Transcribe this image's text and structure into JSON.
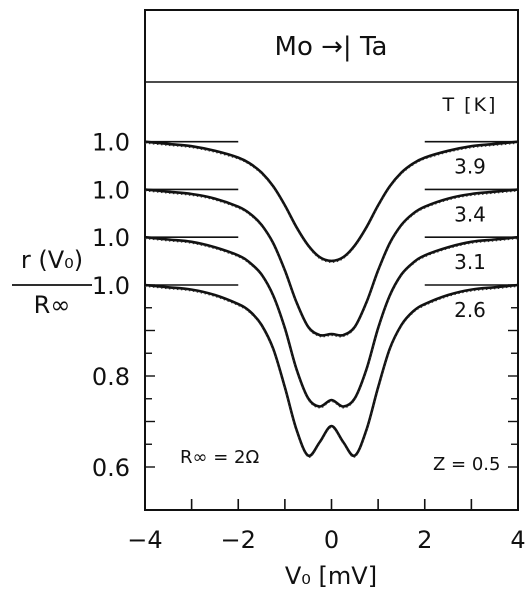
{
  "chart_data": {
    "type": "line",
    "title": "Mo →| Ta",
    "xlabel": "V₀ [mV]",
    "ylabel_numerator": "r (V₀)",
    "ylabel_denominator": "R∞",
    "xlim": [
      -4,
      4
    ],
    "ylim": [
      0.55,
      1.2
    ],
    "x_ticks": [
      -4,
      -2,
      0,
      2,
      4
    ],
    "x_tick_labels": [
      "−4",
      "−2",
      "0",
      "2",
      "4"
    ],
    "y_tick_labels": [
      {
        "value": 1.0,
        "label": "1.0"
      },
      {
        "value": 0.8,
        "label": "0.8"
      },
      {
        "value": 0.6,
        "label": "0.6"
      }
    ],
    "offset_reference_labels": [
      "1.0",
      "1.0",
      "1.0",
      "1.0"
    ],
    "legend_title": "T [K]",
    "annotations": {
      "r_infinity": "R∞ = 2Ω",
      "z": "Z = 0.5"
    },
    "series": [
      {
        "name": "3.9",
        "offset": 0.315,
        "x": [
          -4,
          -3.5,
          -3,
          -2.5,
          -2,
          -1.75,
          -1.5,
          -1.25,
          -1,
          -0.75,
          -0.5,
          -0.25,
          0,
          0.25,
          0.5,
          0.75,
          1,
          1.25,
          1.5,
          1.75,
          2,
          2.5,
          3,
          3.5,
          4
        ],
        "y": [
          1.0,
          0.995,
          0.99,
          0.98,
          0.965,
          0.952,
          0.932,
          0.902,
          0.86,
          0.812,
          0.772,
          0.746,
          0.738,
          0.746,
          0.772,
          0.812,
          0.86,
          0.902,
          0.932,
          0.952,
          0.965,
          0.98,
          0.99,
          0.995,
          1.0
        ]
      },
      {
        "name": "3.4",
        "offset": 0.21,
        "x": [
          -4,
          -3.5,
          -3,
          -2.5,
          -2,
          -1.75,
          -1.5,
          -1.25,
          -1,
          -0.75,
          -0.5,
          -0.25,
          0,
          0.25,
          0.5,
          0.75,
          1,
          1.25,
          1.5,
          1.75,
          2,
          2.5,
          3,
          3.5,
          4
        ],
        "y": [
          1.0,
          0.995,
          0.99,
          0.98,
          0.962,
          0.947,
          0.922,
          0.882,
          0.822,
          0.752,
          0.698,
          0.68,
          0.682,
          0.68,
          0.698,
          0.752,
          0.822,
          0.882,
          0.922,
          0.947,
          0.962,
          0.98,
          0.99,
          0.995,
          1.0
        ]
      },
      {
        "name": "3.1",
        "offset": 0.105,
        "x": [
          -4,
          -3.5,
          -3,
          -2.5,
          -2,
          -1.75,
          -1.5,
          -1.25,
          -1,
          -0.75,
          -0.5,
          -0.25,
          0,
          0.25,
          0.5,
          0.75,
          1,
          1.25,
          1.5,
          1.75,
          2,
          2.5,
          3,
          3.5,
          4
        ],
        "y": [
          1.0,
          0.995,
          0.99,
          0.978,
          0.96,
          0.944,
          0.918,
          0.872,
          0.8,
          0.71,
          0.646,
          0.628,
          0.642,
          0.628,
          0.646,
          0.71,
          0.8,
          0.872,
          0.918,
          0.944,
          0.96,
          0.978,
          0.99,
          0.995,
          1.0
        ]
      },
      {
        "name": "2.6",
        "offset": 0.0,
        "x": [
          -4,
          -3.5,
          -3,
          -2.5,
          -2,
          -1.75,
          -1.5,
          -1.25,
          -1,
          -0.75,
          -0.5,
          -0.25,
          0,
          0.25,
          0.5,
          0.75,
          1,
          1.25,
          1.5,
          1.75,
          2,
          2.5,
          3,
          3.5,
          4
        ],
        "y": [
          1.0,
          0.995,
          0.99,
          0.978,
          0.958,
          0.942,
          0.912,
          0.86,
          0.775,
          0.682,
          0.625,
          0.655,
          0.69,
          0.655,
          0.625,
          0.682,
          0.775,
          0.86,
          0.912,
          0.942,
          0.958,
          0.978,
          0.99,
          0.995,
          1.0
        ]
      }
    ]
  }
}
